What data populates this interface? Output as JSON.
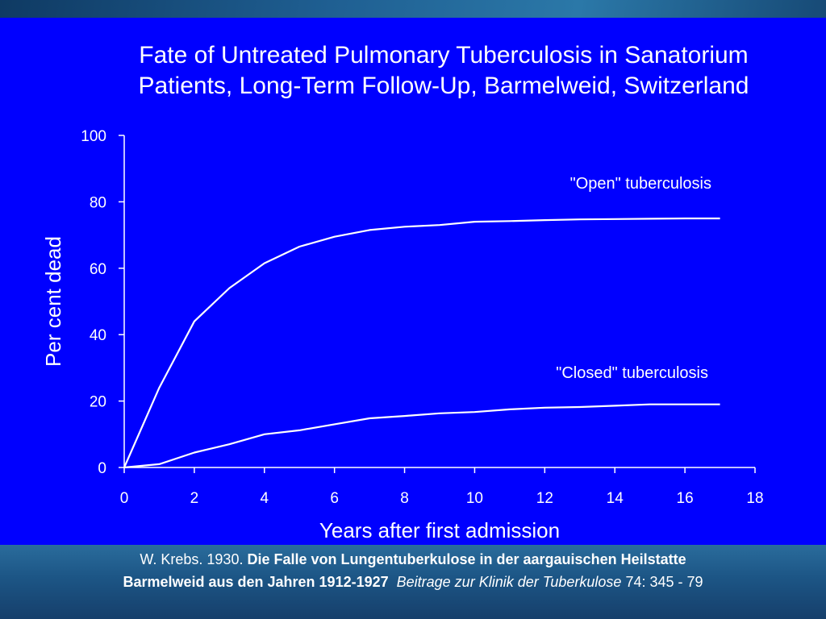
{
  "slide": {
    "title_lines": [
      "Fate of Untreated Pulmonary Tuberculosis in Sanatorium",
      "Patients, Long-Term Follow-Up, Barmelweid, Switzerland"
    ]
  },
  "chart_data": {
    "type": "line",
    "title": "",
    "xlabel": "Years after first admission",
    "ylabel": "Per cent dead",
    "xlim": [
      0,
      18
    ],
    "ylim": [
      0,
      100
    ],
    "xticks": [
      0,
      2,
      4,
      6,
      8,
      10,
      12,
      14,
      16,
      18
    ],
    "yticks": [
      0,
      20,
      40,
      60,
      80,
      100
    ],
    "grid": false,
    "series": [
      {
        "name": "\"Open\" tuberculosis",
        "x": [
          0,
          1,
          2,
          3,
          4,
          5,
          6,
          7,
          8,
          9,
          10,
          11,
          12,
          13,
          14,
          15,
          16,
          17
        ],
        "y": [
          0,
          24,
          44,
          54,
          61.5,
          66.5,
          69.5,
          71.5,
          72.5,
          73,
          74,
          74.2,
          74.5,
          74.7,
          74.8,
          74.9,
          75,
          75
        ]
      },
      {
        "name": "\"Closed\" tuberculosis",
        "x": [
          0,
          1,
          2,
          3,
          4,
          5,
          6,
          7,
          8,
          9,
          10,
          11,
          12,
          13,
          14,
          15,
          16,
          17
        ],
        "y": [
          0,
          1,
          4.5,
          7,
          10,
          11.2,
          13,
          14.8,
          15.5,
          16.3,
          16.7,
          17.5,
          18,
          18.2,
          18.6,
          19,
          19,
          19
        ]
      }
    ],
    "colors": {
      "background": "#0000ff",
      "lines": "#ffffff",
      "text": "#ffffff"
    }
  },
  "citation": {
    "author": "W. Krebs. 1930. ",
    "title_part1": "Die Falle von Lungentuberkulose in der aargauischen Heilstatte",
    "title_part2": "Barmelweid aus den Jahren 1912-1927",
    "journal": "Beitrage zur Klinik der Tuberkulose",
    "volume_pages": " 74: 345 - 79"
  }
}
